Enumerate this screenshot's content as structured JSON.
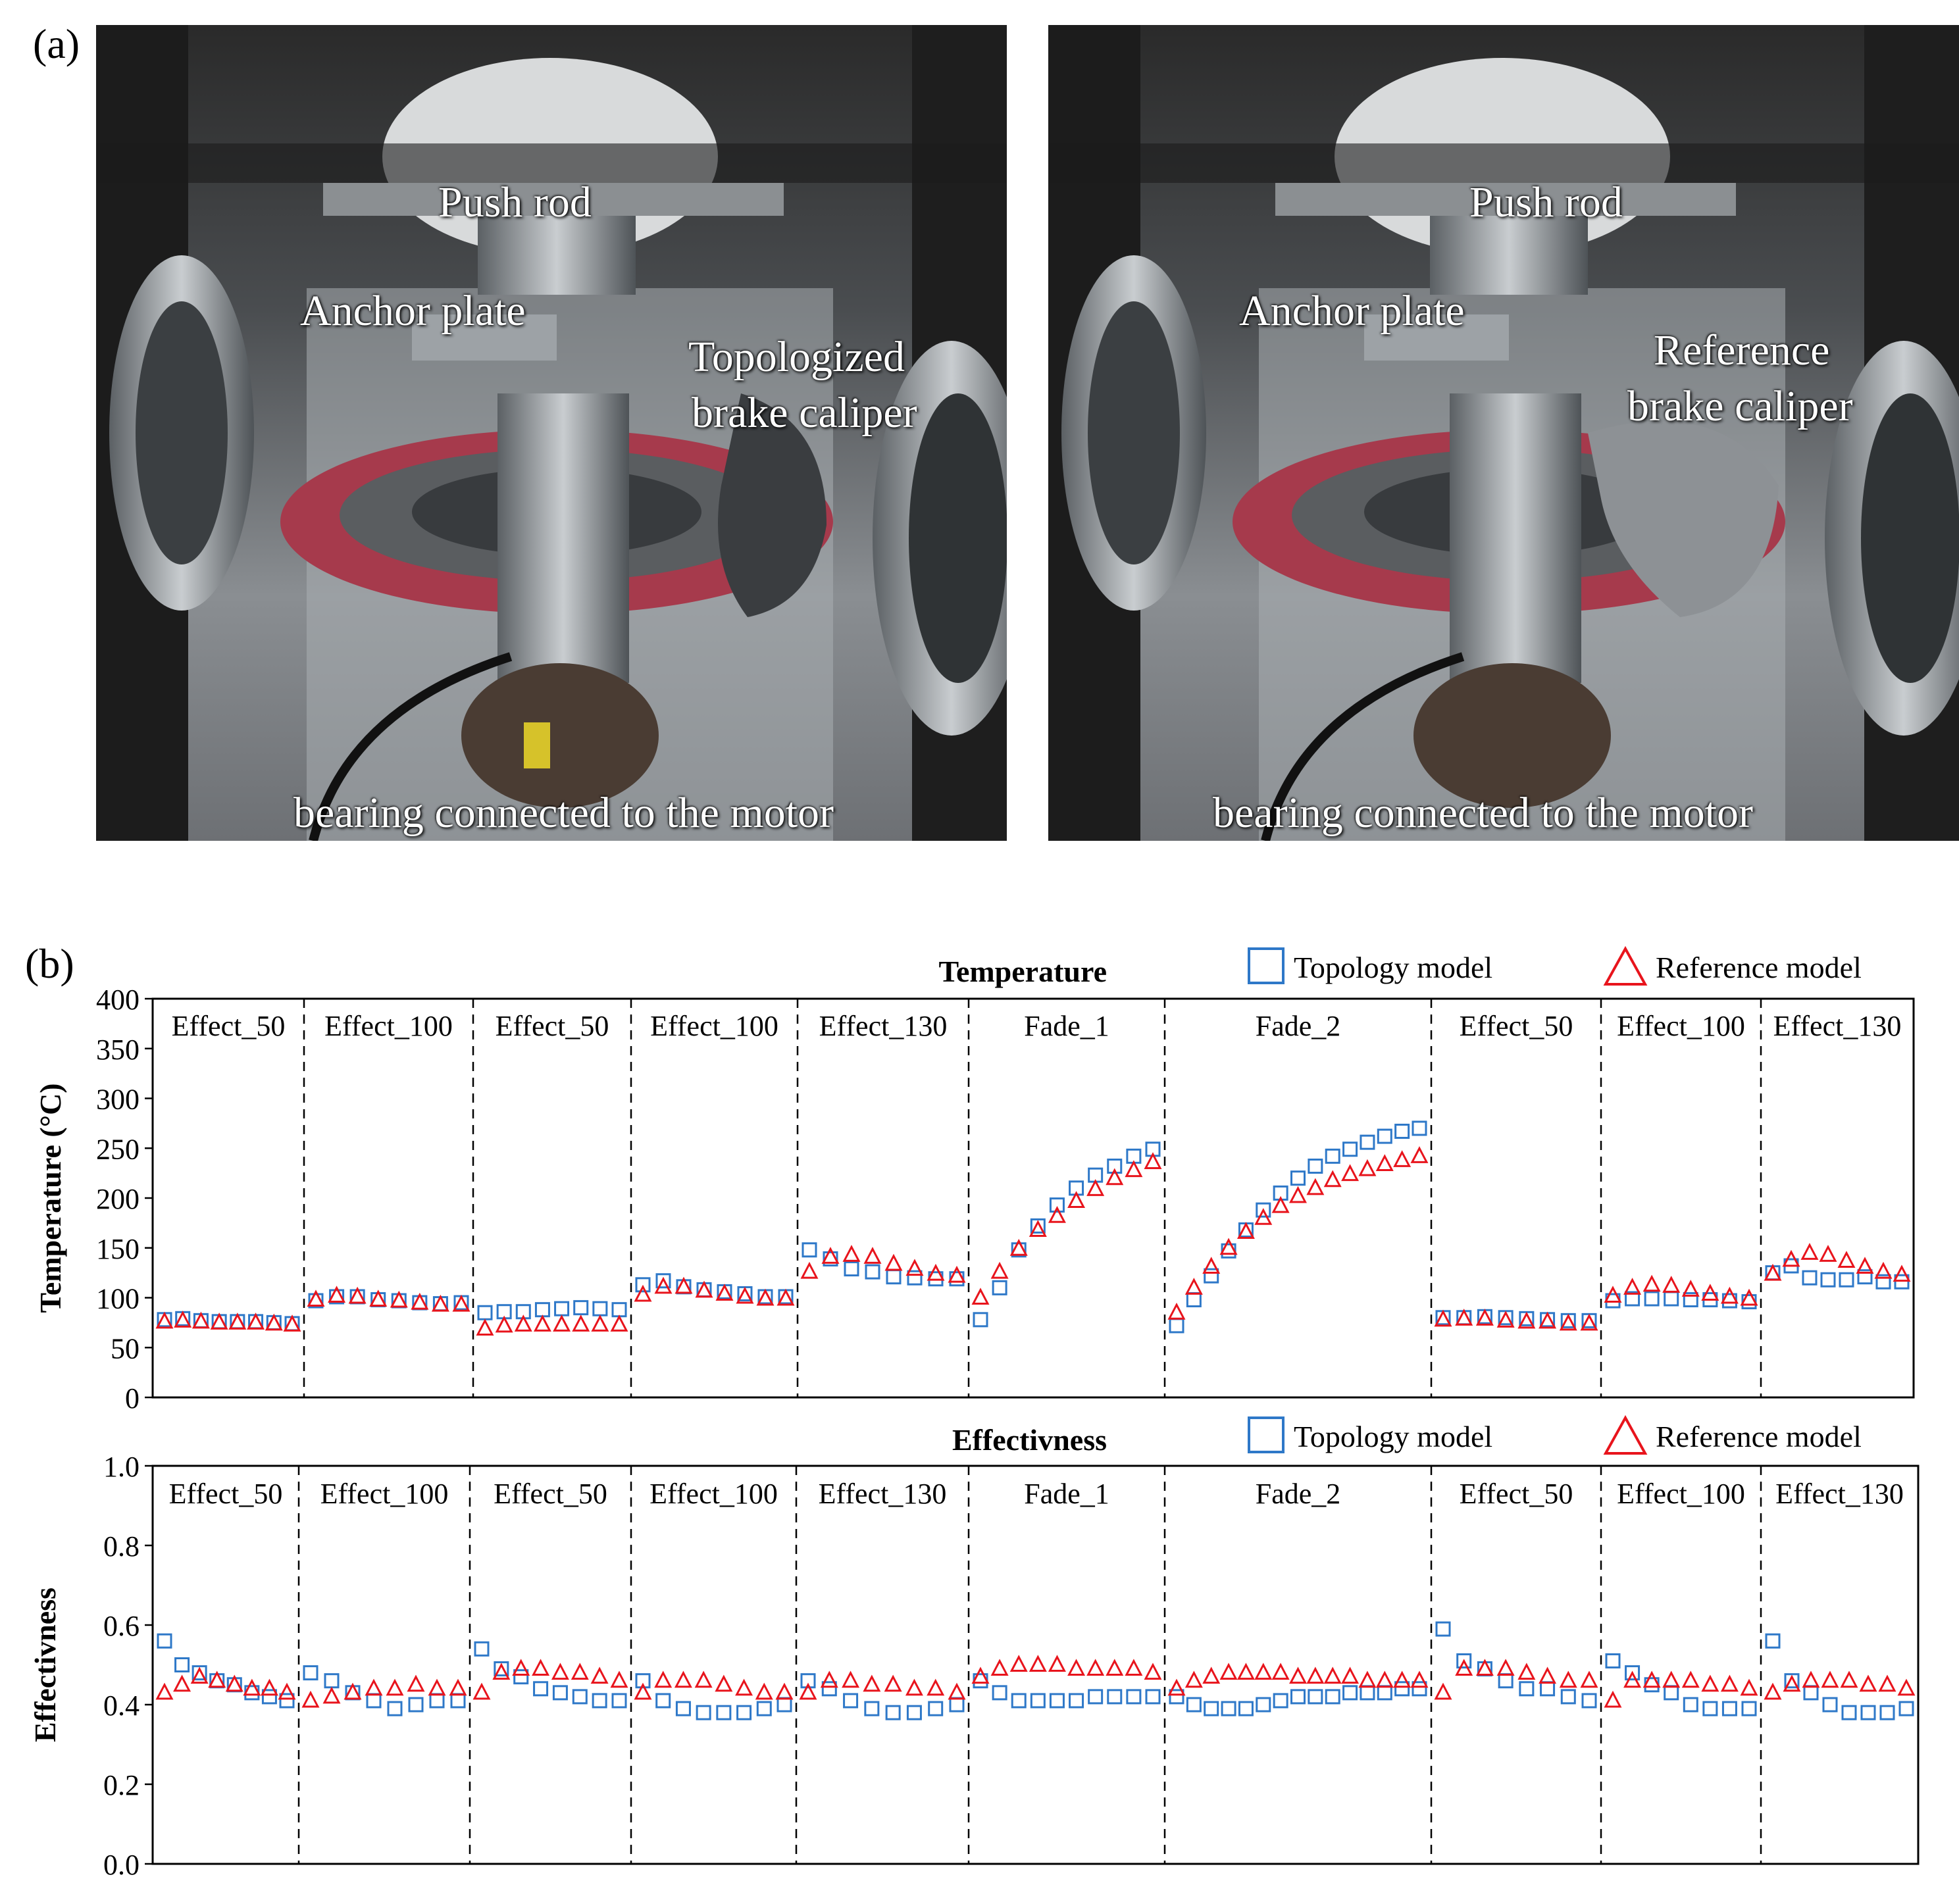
{
  "figure": {
    "label_a": "(a)",
    "label_b": "(b)"
  },
  "photos": [
    {
      "push_rod": "Push rod",
      "anchor_plate": "Anchor plate",
      "caliper_line1": "Topologized",
      "caliper_line2": "brake caliper",
      "bearing": "bearing connected to the motor"
    },
    {
      "push_rod": "Push rod",
      "anchor_plate": "Anchor plate",
      "caliper_line1": "Reference",
      "caliper_line2": "brake caliper",
      "bearing": "bearing connected to the motor"
    }
  ],
  "colors": {
    "topology": "#2e78c8",
    "reference": "#e8141c"
  },
  "chart_data": [
    {
      "type": "scatter",
      "title": "Temperature",
      "ylabel": "Temperature (°C)",
      "ylim": [
        0,
        400
      ],
      "yticks": [
        "0",
        "50",
        "100",
        "150",
        "200",
        "250",
        "300",
        "350",
        "400"
      ],
      "legend": [
        "Topology model",
        "Reference model"
      ],
      "legend_position": "top-right",
      "segments": [
        {
          "label": "Effect_50",
          "points": 8
        },
        {
          "label": "Effect_100",
          "points": 8
        },
        {
          "label": "Effect_50",
          "points": 8
        },
        {
          "label": "Effect_100",
          "points": 8
        },
        {
          "label": "Effect_130",
          "points": 8
        },
        {
          "label": "Fade_1",
          "points": 10
        },
        {
          "label": "Fade_2",
          "points": 15
        },
        {
          "label": "Effect_50",
          "points": 8
        },
        {
          "label": "Effect_100",
          "points": 8
        },
        {
          "label": "Effect_130",
          "points": 8
        }
      ],
      "series": [
        {
          "name": "Topology model",
          "marker": "square",
          "values": [
            [
              78,
              79,
              77,
              76,
              76,
              76,
              75,
              74
            ],
            [
              97,
              101,
              101,
              98,
              97,
              95,
              94,
              95
            ],
            [
              85,
              86,
              86,
              88,
              89,
              90,
              89,
              88
            ],
            [
              113,
              117,
              111,
              108,
              106,
              104,
              101,
              101
            ],
            [
              148,
              139,
              129,
              126,
              121,
              120,
              119,
              119
            ],
            [
              78,
              110,
              148,
              172,
              193,
              210,
              223,
              232,
              242,
              249
            ],
            [
              72,
              98,
              122,
              147,
              168,
              188,
              205,
              220,
              232,
              242,
              249,
              256,
              262,
              267,
              270
            ],
            [
              80,
              80,
              81,
              80,
              79,
              78,
              77,
              77
            ],
            [
              97,
              99,
              99,
              99,
              98,
              98,
              97,
              96
            ],
            [
              125,
              132,
              120,
              118,
              118,
              121,
              116,
              116
            ]
          ]
        },
        {
          "name": "Reference model",
          "marker": "triangle",
          "values": [
            [
              76,
              77,
              76,
              75,
              75,
              75,
              74,
              73
            ],
            [
              98,
              102,
              101,
              98,
              97,
              95,
              93,
              93
            ],
            [
              69,
              72,
              73,
              73,
              73,
              73,
              73,
              73
            ],
            [
              103,
              111,
              111,
              107,
              104,
              101,
              99,
              99
            ],
            [
              126,
              141,
              143,
              141,
              134,
              129,
              124,
              122
            ],
            [
              100,
              126,
              149,
              168,
              182,
              197,
              209,
              220,
              228,
              236
            ],
            [
              85,
              110,
              131,
              150,
              166,
              180,
              192,
              202,
              210,
              218,
              224,
              229,
              234,
              238,
              242
            ],
            [
              78,
              79,
              79,
              77,
              76,
              76,
              74,
              74
            ],
            [
              102,
              110,
              113,
              112,
              108,
              104,
              101,
              99
            ],
            [
              124,
              138,
              145,
              143,
              137,
              131,
              126,
              123
            ]
          ]
        }
      ]
    },
    {
      "type": "scatter",
      "title": "Effectivness",
      "ylabel": "Effectivness",
      "ylim": [
        0.0,
        1.0
      ],
      "yticks": [
        "0.0",
        "0.2",
        "0.4",
        "0.6",
        "0.8",
        "1.0"
      ],
      "legend": [
        "Topology model",
        "Reference model"
      ],
      "legend_position": "top-right",
      "segments": [
        {
          "label": "Effect_50",
          "points": 8
        },
        {
          "label": "Effect_100",
          "points": 8
        },
        {
          "label": "Effect_50",
          "points": 8
        },
        {
          "label": "Effect_100",
          "points": 8
        },
        {
          "label": "Effect_130",
          "points": 8
        },
        {
          "label": "Fade_1",
          "points": 10
        },
        {
          "label": "Fade_2",
          "points": 15
        },
        {
          "label": "Effect_50",
          "points": 8
        },
        {
          "label": "Effect_100",
          "points": 8
        },
        {
          "label": "Effect_130",
          "points": 8
        }
      ],
      "series": [
        {
          "name": "Topology model",
          "marker": "square",
          "values": [
            [
              0.56,
              0.5,
              0.48,
              0.46,
              0.45,
              0.43,
              0.42,
              0.41
            ],
            [
              0.48,
              0.46,
              0.43,
              0.41,
              0.39,
              0.4,
              0.41,
              0.41
            ],
            [
              0.54,
              0.49,
              0.47,
              0.44,
              0.43,
              0.42,
              0.41,
              0.41
            ],
            [
              0.46,
              0.41,
              0.39,
              0.38,
              0.38,
              0.38,
              0.39,
              0.4
            ],
            [
              0.46,
              0.44,
              0.41,
              0.39,
              0.38,
              0.38,
              0.39,
              0.4
            ],
            [
              0.46,
              0.43,
              0.41,
              0.41,
              0.41,
              0.41,
              0.42,
              0.42,
              0.42,
              0.42
            ],
            [
              0.42,
              0.4,
              0.39,
              0.39,
              0.39,
              0.4,
              0.41,
              0.42,
              0.42,
              0.42,
              0.43,
              0.43,
              0.43,
              0.44,
              0.44
            ],
            [
              0.59,
              0.51,
              0.49,
              0.46,
              0.44,
              0.44,
              0.42,
              0.41
            ],
            [
              0.51,
              0.48,
              0.45,
              0.43,
              0.4,
              0.39,
              0.39,
              0.39
            ],
            [
              0.56,
              0.46,
              0.43,
              0.4,
              0.38,
              0.38,
              0.38,
              0.39
            ]
          ]
        },
        {
          "name": "Reference model",
          "marker": "triangle",
          "values": [
            [
              0.43,
              0.45,
              0.47,
              0.46,
              0.45,
              0.44,
              0.44,
              0.43
            ],
            [
              0.41,
              0.42,
              0.43,
              0.44,
              0.44,
              0.45,
              0.44,
              0.44
            ],
            [
              0.43,
              0.48,
              0.49,
              0.49,
              0.48,
              0.48,
              0.47,
              0.46
            ],
            [
              0.43,
              0.46,
              0.46,
              0.46,
              0.45,
              0.44,
              0.43,
              0.43
            ],
            [
              0.43,
              0.46,
              0.46,
              0.45,
              0.45,
              0.44,
              0.44,
              0.43
            ],
            [
              0.47,
              0.49,
              0.5,
              0.5,
              0.5,
              0.49,
              0.49,
              0.49,
              0.49,
              0.48
            ],
            [
              0.44,
              0.46,
              0.47,
              0.48,
              0.48,
              0.48,
              0.48,
              0.47,
              0.47,
              0.47,
              0.47,
              0.46,
              0.46,
              0.46,
              0.46
            ],
            [
              0.43,
              0.49,
              0.49,
              0.49,
              0.48,
              0.47,
              0.46,
              0.46
            ],
            [
              0.41,
              0.46,
              0.46,
              0.46,
              0.46,
              0.45,
              0.45,
              0.44
            ],
            [
              0.43,
              0.45,
              0.46,
              0.46,
              0.46,
              0.45,
              0.45,
              0.44
            ]
          ]
        }
      ]
    }
  ]
}
